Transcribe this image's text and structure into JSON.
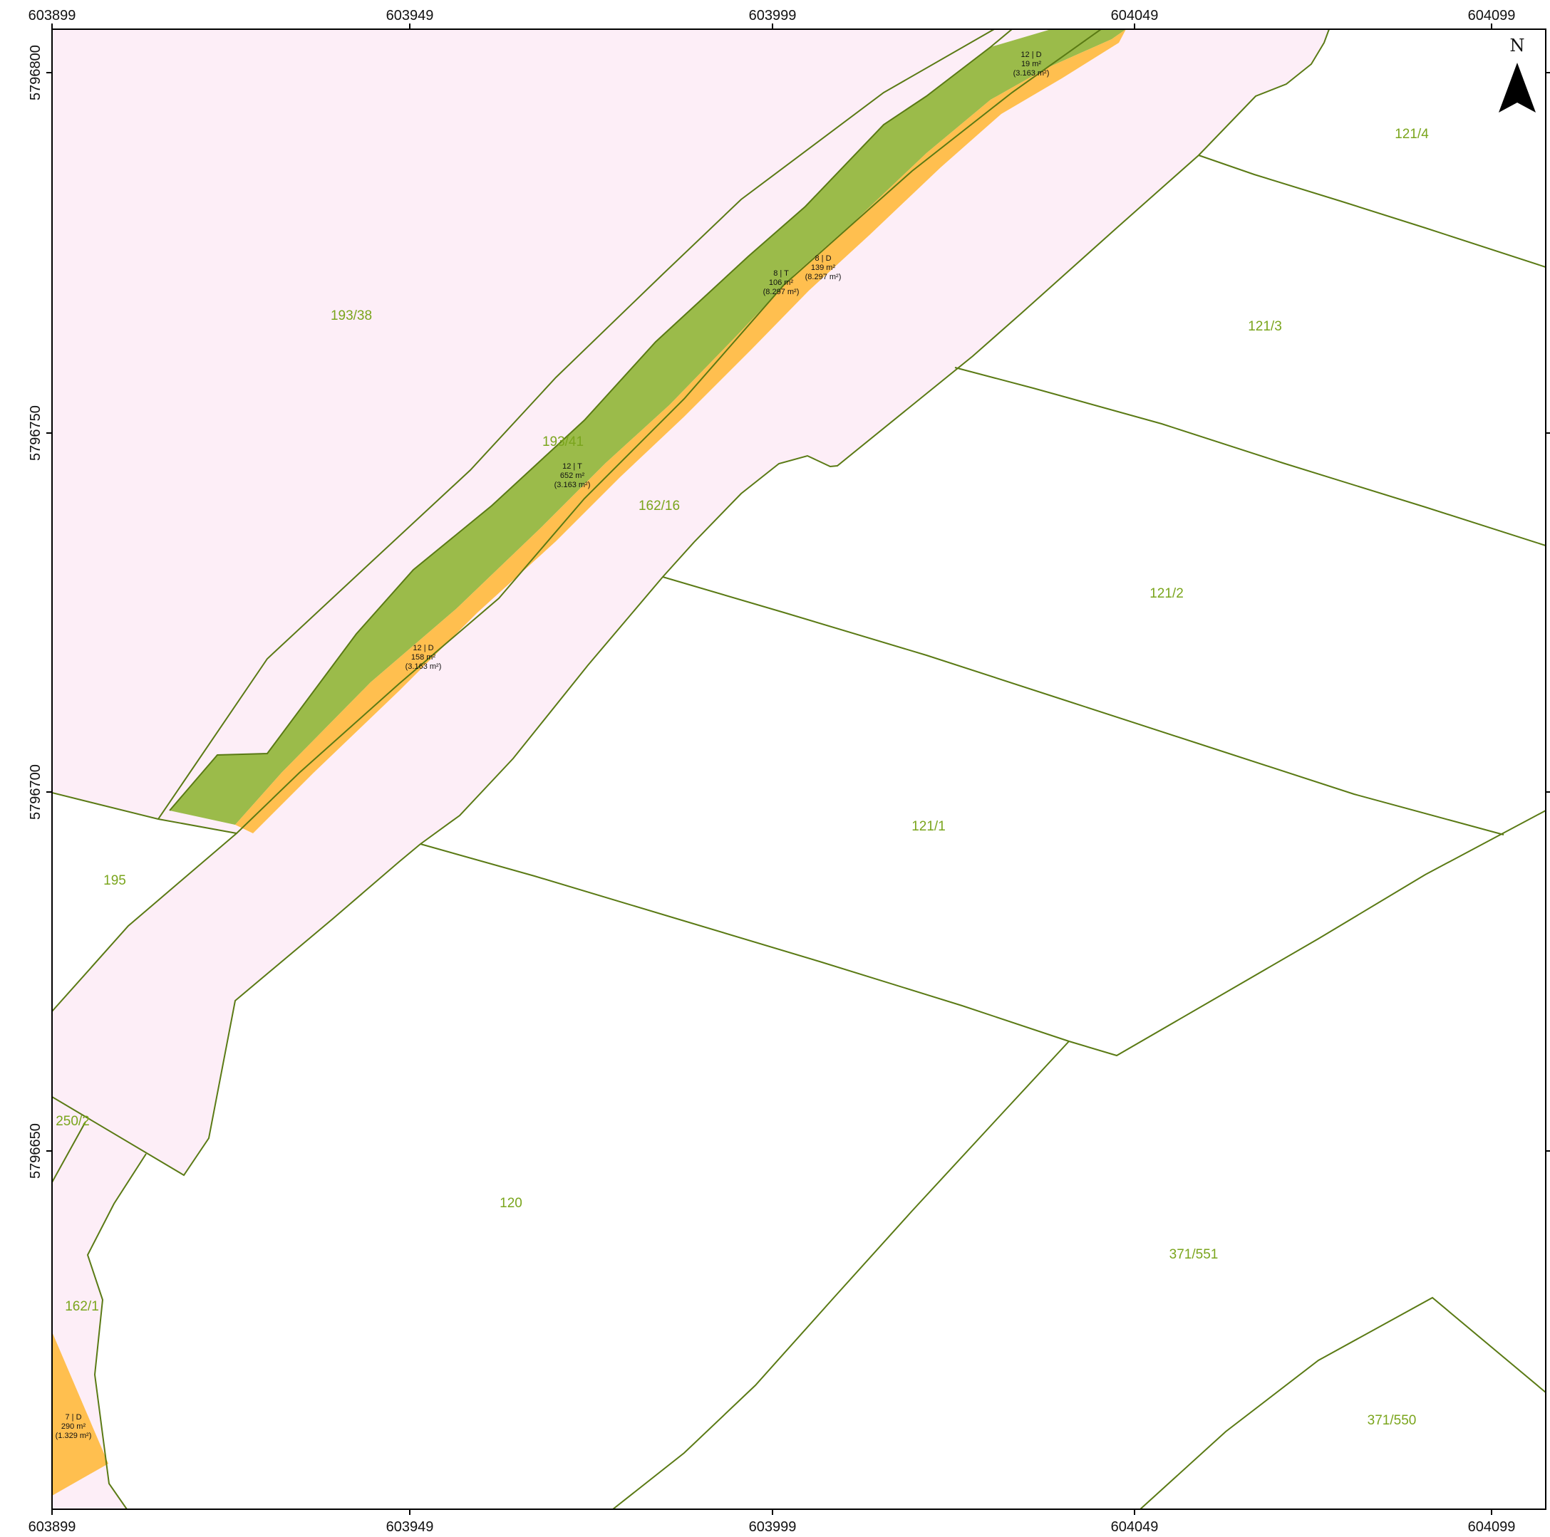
{
  "colors": {
    "background": "#ffffff",
    "pink_area": "#fdeef7",
    "green_strip": "#9bbb4a",
    "orange_strip": "#ffbf4f",
    "boundary": "#5a7a14",
    "parcel_text": "#7aa51c",
    "frame": "#000000"
  },
  "coords": {
    "x_ticks": [
      "603899",
      "603949",
      "603999",
      "604049",
      "604099"
    ],
    "y_ticks": [
      "5796800",
      "5796750",
      "5796700",
      "5796650"
    ]
  },
  "north_arrow": {
    "letter": "N",
    "icon": "north-arrow-icon"
  },
  "parcels": [
    "193/38",
    "193/41",
    "162/16",
    "121/4",
    "121/3",
    "121/2",
    "121/1",
    "195",
    "250/2",
    "120",
    "371/551",
    "162/1",
    "371/550"
  ],
  "area_labels": [
    {
      "l1": "12 | D",
      "l2": "19 m²",
      "l3": "(3.163 m²)"
    },
    {
      "l1": "8 | D",
      "l2": "139 m²",
      "l3": "(8.297 m²)"
    },
    {
      "l1": "8 | T",
      "l2": "106 m²",
      "l3": "(8.297 m²)"
    },
    {
      "l1": "12 | T",
      "l2": "652 m²",
      "l3": "(3.163 m²)"
    },
    {
      "l1": "12 | D",
      "l2": "158 m²",
      "l3": "(3.163 m²)"
    },
    {
      "l1": "7 | D",
      "l2": "290 m²",
      "l3": "(1.329 m²)"
    }
  ]
}
